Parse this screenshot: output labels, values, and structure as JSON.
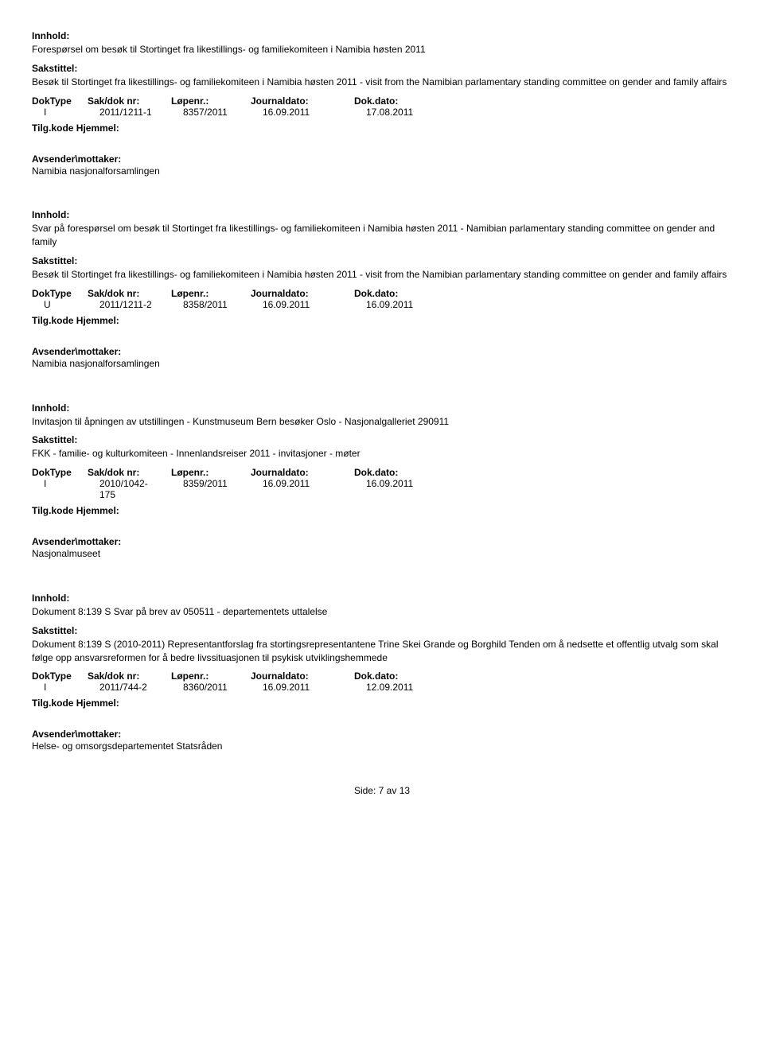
{
  "labels": {
    "innhold": "Innhold:",
    "sakstittel": "Sakstittel:",
    "doktype": "DokType",
    "sakdok": "Sak/dok nr:",
    "lopenr": "Løpenr.:",
    "journaldato": "Journaldato:",
    "dokdato": "Dok.dato:",
    "tilgkode": "Tilg.kode Hjemmel:",
    "avsender": "Avsender\\mottaker:"
  },
  "records": [
    {
      "innhold": "Forespørsel om besøk til Stortinget fra likestillings- og familiekomiteen i Namibia høsten 2011",
      "sakstittel": "Besøk til Stortinget fra likestillings- og familiekomiteen i Namibia høsten 2011 - visit from the Namibian parlamentary standing committee on gender and family affairs",
      "doktype": "I",
      "sakdok": "2011/1211-1",
      "lopenr": "8357/2011",
      "journaldato": "16.09.2011",
      "dokdato": "17.08.2011",
      "avsender": "Namibia nasjonalforsamlingen"
    },
    {
      "innhold": "Svar på forespørsel om besøk til Stortinget fra likestillings- og familiekomiteen i Namibia høsten 2011 - Namibian parlamentary standing committee on gender and family",
      "sakstittel": "Besøk til Stortinget fra likestillings- og familiekomiteen i Namibia høsten 2011 - visit from the Namibian parlamentary standing committee on gender and family affairs",
      "doktype": "U",
      "sakdok": "2011/1211-2",
      "lopenr": "8358/2011",
      "journaldato": "16.09.2011",
      "dokdato": "16.09.2011",
      "avsender": "Namibia nasjonalforsamlingen"
    },
    {
      "innhold": "Invitasjon til åpningen av utstillingen - Kunstmuseum Bern besøker Oslo - Nasjonalgalleriet 290911",
      "sakstittel": "FKK - familie- og kulturkomiteen - Innenlandsreiser 2011 - invitasjoner - møter",
      "doktype": "I",
      "sakdok": "2010/1042-175",
      "sakdok_line1": "2010/1042-",
      "sakdok_line2": "175",
      "lopenr": "8359/2011",
      "journaldato": "16.09.2011",
      "dokdato": "16.09.2011",
      "avsender": "Nasjonalmuseet"
    },
    {
      "innhold": "Dokument 8:139 S Svar på brev av 050511 - departementets uttalelse",
      "sakstittel": "Dokument 8:139 S (2010-2011) Representantforslag fra stortingsrepresentantene Trine Skei Grande og Borghild Tenden om å nedsette et offentlig utvalg som skal følge opp ansvarsreformen for å bedre livssituasjonen til psykisk utviklingshemmede",
      "doktype": "I",
      "sakdok": "2011/744-2",
      "lopenr": "8360/2011",
      "journaldato": "16.09.2011",
      "dokdato": "12.09.2011",
      "avsender": "Helse- og omsorgsdepartementet Statsråden"
    }
  ],
  "footer": {
    "side": "Side:",
    "page": "7",
    "av": "av",
    "total": "13"
  }
}
